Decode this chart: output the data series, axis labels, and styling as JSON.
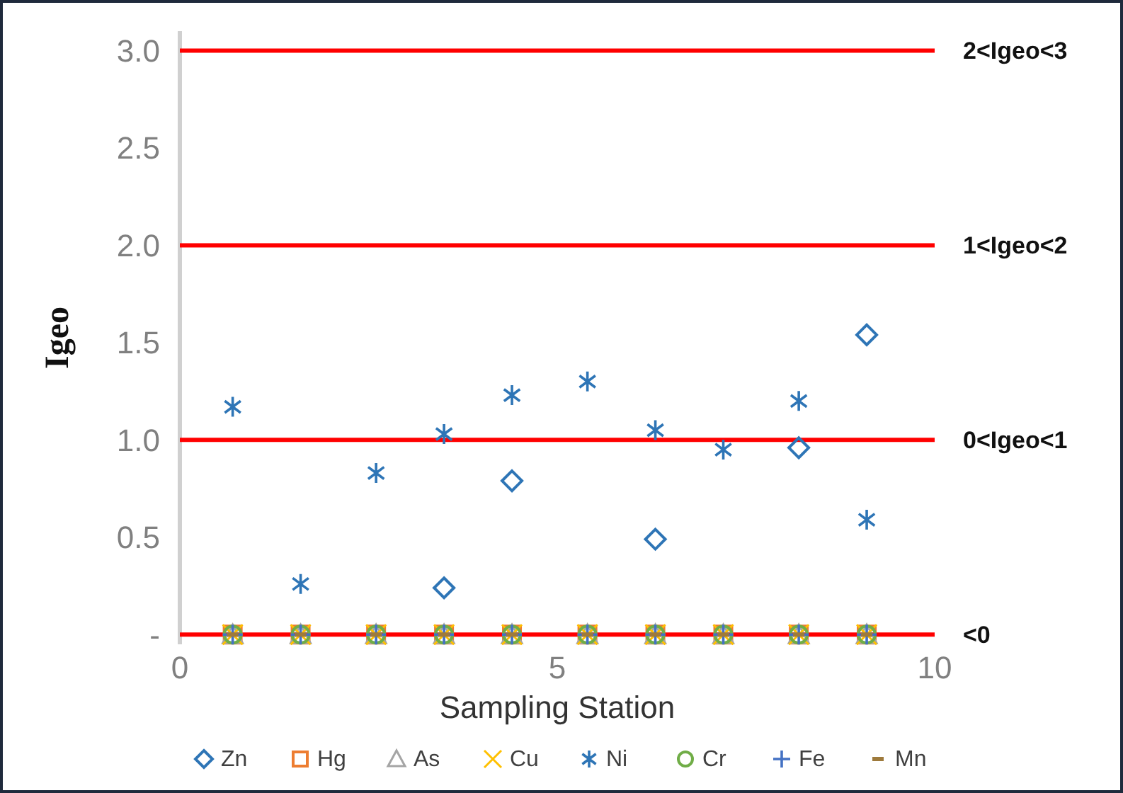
{
  "chart_data": {
    "type": "scatter",
    "xlabel": "Sampling Station",
    "ylabel": "Igeo",
    "x": [
      0.7,
      1.6,
      2.6,
      3.5,
      4.4,
      5.4,
      6.3,
      7.2,
      8.2,
      9.1
    ],
    "series": [
      {
        "name": "Zn",
        "color": "#2e75b6",
        "marker": "diamond",
        "values": [
          null,
          null,
          null,
          0.24,
          0.79,
          null,
          0.49,
          null,
          0.96,
          1.54
        ]
      },
      {
        "name": "Hg",
        "color": "#ed7d31",
        "marker": "square",
        "values": [
          0,
          0,
          0,
          0,
          0,
          0,
          0,
          0,
          0,
          0
        ]
      },
      {
        "name": "As",
        "color": "#a5a5a5",
        "marker": "triangle",
        "values": [
          0,
          0,
          0,
          0,
          0,
          0,
          0,
          0,
          0,
          0
        ]
      },
      {
        "name": "Cu",
        "color": "#ffc000",
        "marker": "cross",
        "values": [
          0,
          0,
          0,
          0,
          0,
          0,
          0,
          0,
          0,
          0
        ]
      },
      {
        "name": "Ni",
        "color": "#2e75b6",
        "marker": "cross",
        "values": [
          1.17,
          0.26,
          0.83,
          1.03,
          1.23,
          1.3,
          1.05,
          0.95,
          1.2,
          0.59
        ]
      },
      {
        "name": "Cr",
        "color": "#70ad47",
        "marker": "circle",
        "values": [
          0,
          0,
          0,
          0,
          0,
          0,
          0,
          0,
          0,
          0
        ]
      },
      {
        "name": "Fe",
        "color": "#4472c4",
        "marker": "cross",
        "values": [
          0,
          0,
          0,
          0,
          0,
          0,
          0,
          0,
          0,
          0
        ]
      },
      {
        "name": "Mn",
        "color": "#9e7a3c",
        "marker": "square",
        "values": [
          0,
          0,
          0,
          0,
          0,
          0,
          0,
          0,
          0,
          0
        ]
      }
    ],
    "xlim": [
      0,
      10
    ],
    "xticks": [
      0,
      5,
      10
    ],
    "ylim": [
      -0.05,
      3.1
    ],
    "yticks": [
      {
        "value": 0,
        "label": "-"
      },
      0.5,
      {
        "value": 1,
        "label": "1.0"
      },
      1.5,
      {
        "value": 2,
        "label": "2.0"
      },
      2.5,
      {
        "value": 3,
        "label": "3.0"
      }
    ],
    "ref_lines": [
      {
        "axis": "y",
        "value": 3,
        "label": "2<Igeo<3",
        "color": "#ff0000"
      },
      {
        "axis": "y",
        "value": 2,
        "label": "1<Igeo<2",
        "color": "#ff0000"
      },
      {
        "axis": "y",
        "value": 1,
        "label": "0<Igeo<1",
        "color": "#ff0000"
      },
      {
        "axis": "y",
        "value": 0,
        "label": "<0",
        "color": "#ff0000"
      }
    ],
    "grid": false,
    "legend": "bottom"
  }
}
